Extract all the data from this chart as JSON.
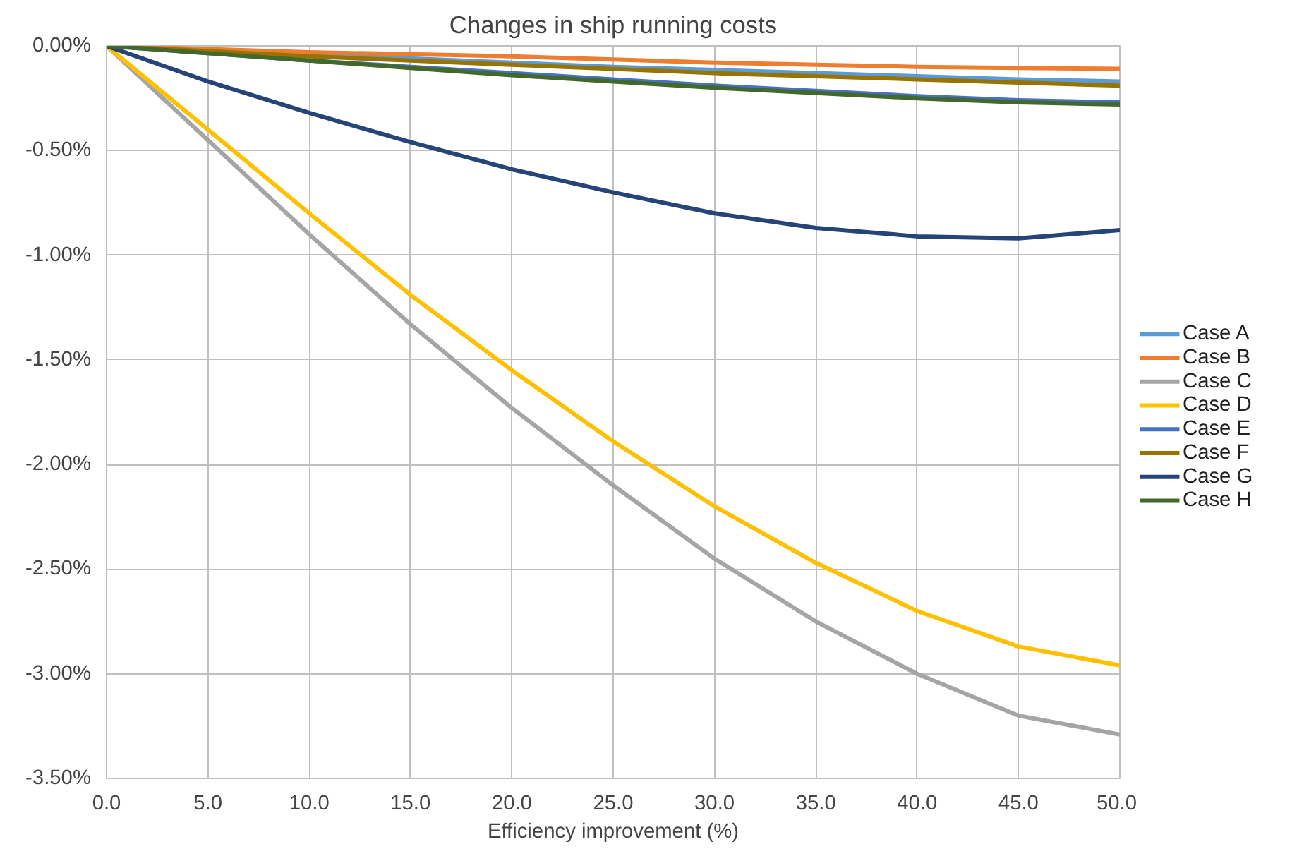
{
  "chart_data": {
    "type": "line",
    "title": "Changes in ship running costs",
    "xlabel": "Efficiency improvement (%)",
    "xlim": [
      0,
      50
    ],
    "xticks": [
      {
        "value": 0,
        "label": "0.0"
      },
      {
        "value": 5,
        "label": "5.0"
      },
      {
        "value": 10,
        "label": "10.0"
      },
      {
        "value": 15,
        "label": "15.0"
      },
      {
        "value": 20,
        "label": "20.0"
      },
      {
        "value": 25,
        "label": "25.0"
      },
      {
        "value": 30,
        "label": "30.0"
      },
      {
        "value": 35,
        "label": "35.0"
      },
      {
        "value": 40,
        "label": "40.0"
      },
      {
        "value": 45,
        "label": "45.0"
      },
      {
        "value": 50,
        "label": "50.0"
      }
    ],
    "ylim": [
      -3.5,
      0
    ],
    "yticks": [
      {
        "value": 0,
        "label": "0.00%"
      },
      {
        "value": -0.5,
        "label": "-0.50%"
      },
      {
        "value": -1,
        "label": "-1.00%"
      },
      {
        "value": -1.5,
        "label": "-1.50%"
      },
      {
        "value": -2,
        "label": "-2.00%"
      },
      {
        "value": -2.5,
        "label": "-2.50%"
      },
      {
        "value": -3,
        "label": "-3.00%"
      },
      {
        "value": -3.5,
        "label": "-3.50%"
      }
    ],
    "grid": true,
    "legend": "right",
    "marker": "none",
    "line_style": "solid",
    "x": [
      0,
      5,
      10,
      15,
      20,
      25,
      30,
      35,
      40,
      45,
      50
    ],
    "series": [
      {
        "name": "Case A",
        "color": "#5b9bd5",
        "values": [
          0,
          -0.02,
          -0.04,
          -0.06,
          -0.08,
          -0.1,
          -0.115,
          -0.13,
          -0.145,
          -0.16,
          -0.17
        ]
      },
      {
        "name": "Case B",
        "color": "#ed7d31",
        "values": [
          0,
          -0.015,
          -0.03,
          -0.04,
          -0.05,
          -0.065,
          -0.08,
          -0.09,
          -0.1,
          -0.105,
          -0.11
        ]
      },
      {
        "name": "Case C",
        "color": "#a5a5a5",
        "values": [
          0,
          -0.45,
          -0.9,
          -1.33,
          -1.73,
          -2.1,
          -2.45,
          -2.75,
          -3.0,
          -3.2,
          -3.29
        ]
      },
      {
        "name": "Case D",
        "color": "#ffc000",
        "values": [
          0,
          -0.4,
          -0.8,
          -1.19,
          -1.55,
          -1.89,
          -2.2,
          -2.47,
          -2.7,
          -2.87,
          -2.96
        ]
      },
      {
        "name": "Case E",
        "color": "#4472c4",
        "values": [
          0,
          -0.035,
          -0.07,
          -0.1,
          -0.13,
          -0.16,
          -0.19,
          -0.215,
          -0.24,
          -0.26,
          -0.27
        ]
      },
      {
        "name": "Case F",
        "color": "#997300",
        "values": [
          0,
          -0.025,
          -0.05,
          -0.07,
          -0.09,
          -0.11,
          -0.13,
          -0.145,
          -0.16,
          -0.175,
          -0.19
        ]
      },
      {
        "name": "Case G",
        "color": "#264478",
        "values": [
          0,
          -0.17,
          -0.32,
          -0.46,
          -0.59,
          -0.7,
          -0.8,
          -0.87,
          -0.91,
          -0.92,
          -0.88
        ]
      },
      {
        "name": "Case H",
        "color": "#43682b",
        "values": [
          0,
          -0.035,
          -0.07,
          -0.105,
          -0.14,
          -0.17,
          -0.2,
          -0.225,
          -0.25,
          -0.27,
          -0.28
        ]
      }
    ]
  }
}
